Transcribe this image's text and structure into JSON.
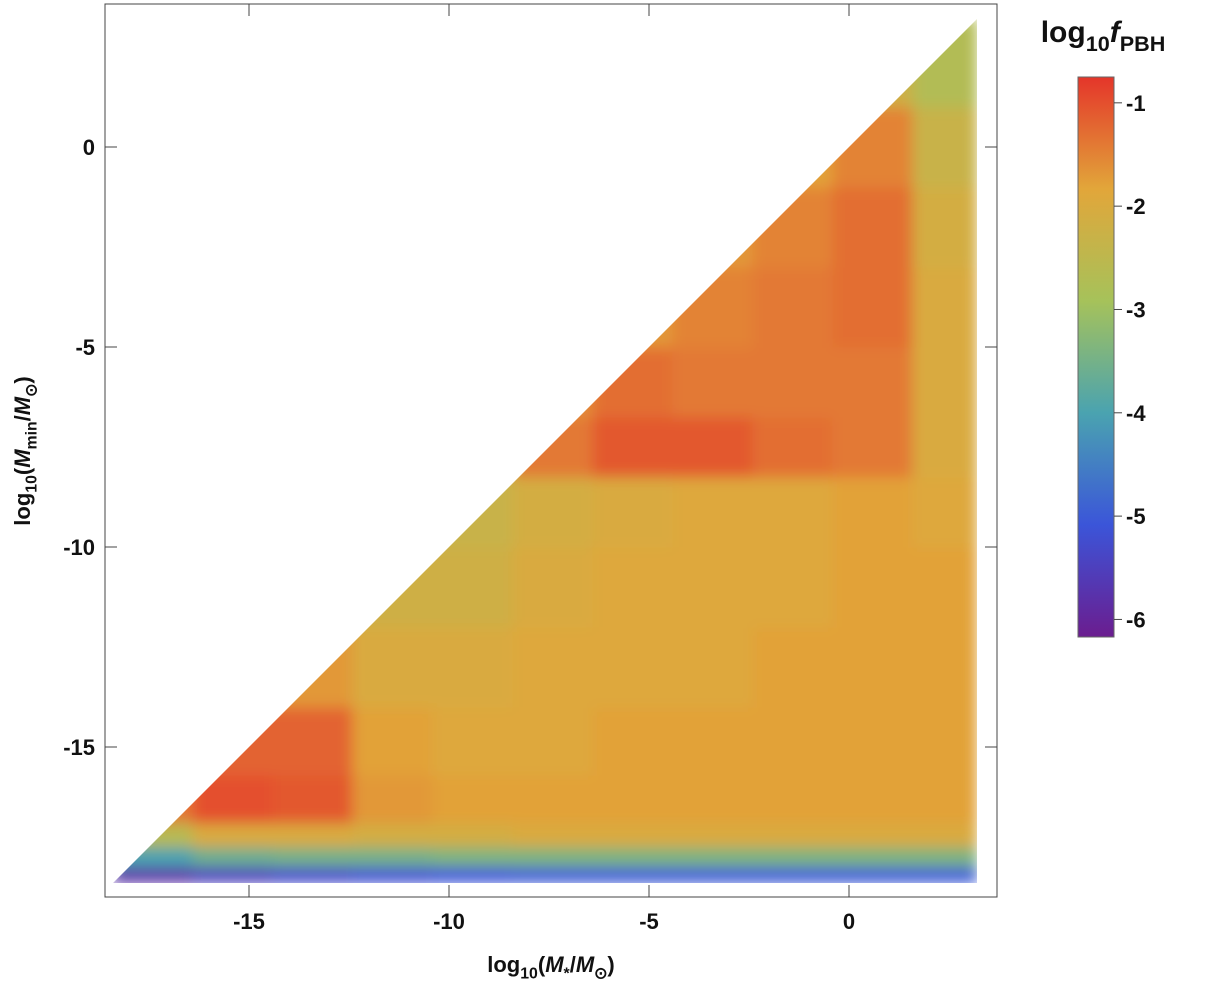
{
  "chart_data": {
    "type": "heatmap",
    "xlabel": [
      "log",
      "10",
      "(",
      "M",
      "*",
      "/",
      "M",
      "⊙",
      ")"
    ],
    "ylabel": [
      "log",
      "10",
      "(",
      "M",
      "min",
      "/",
      "M",
      "⊙",
      ")"
    ],
    "colorbar_label": [
      "log",
      "10",
      "f",
      "PBH"
    ],
    "xlim": [
      -18.6,
      3.7
    ],
    "ylim": [
      -18.75,
      3.575
    ],
    "xticks": [
      -15,
      -10,
      -5,
      0
    ],
    "yticks": [
      -15,
      -10,
      -5,
      0
    ],
    "x_edges": [
      -18.4,
      -16.4,
      -14.4,
      -12.4,
      -10.4,
      -8.4,
      -6.4,
      -4.4,
      -2.4,
      -0.4,
      1.6,
      3.2
    ],
    "y_edges": [
      -18.4,
      -18.0,
      -17.5,
      -16.9,
      -15.7,
      -14,
      -12,
      -10,
      -8.25,
      -6.75,
      -5,
      -3,
      -1,
      1,
      3.2
    ],
    "z": [
      [
        -5.8,
        -5.5,
        -5.3,
        -5.2,
        -5.1,
        -5.0,
        -5.0,
        -5.0,
        -5.0,
        -5.0,
        -5.0
      ],
      [
        -4.0,
        -3.6,
        -3.5,
        -3.5,
        -3.4,
        -3.4,
        -3.4,
        -3.4,
        -3.4,
        -3.4,
        -3.4
      ],
      [
        -2.6,
        -2.0,
        -2.0,
        -2.1,
        -2.1,
        -2.0,
        -2.0,
        -2.0,
        -2.0,
        -2.0,
        -2.0
      ],
      [
        -1.4,
        -1.0,
        -1.1,
        -1.7,
        -1.8,
        -1.8,
        -1.8,
        -1.8,
        -1.8,
        -1.8,
        -1.8
      ],
      [
        null,
        -1.2,
        -1.2,
        -1.8,
        -1.9,
        -1.9,
        -1.8,
        -1.8,
        -1.8,
        -1.8,
        -1.8
      ],
      [
        null,
        -1.9,
        -1.7,
        -2.0,
        -2.0,
        -1.9,
        -1.9,
        -1.9,
        -1.8,
        -1.8,
        -1.8
      ],
      [
        null,
        null,
        -2.3,
        -2.2,
        -2.2,
        -2.0,
        -1.9,
        -1.9,
        -1.9,
        -1.8,
        -1.8
      ],
      [
        null,
        null,
        null,
        -2.6,
        -2.3,
        -2.1,
        -2.0,
        -1.9,
        -1.9,
        -1.8,
        -1.9
      ],
      [
        null,
        null,
        null,
        null,
        -2.4,
        -1.4,
        -1.1,
        -1.1,
        -1.3,
        -1.4,
        -2.0
      ],
      [
        null,
        null,
        null,
        null,
        null,
        -1.6,
        -1.3,
        -1.4,
        -1.4,
        -1.4,
        -2.0
      ],
      [
        null,
        null,
        null,
        null,
        null,
        null,
        -1.7,
        -1.5,
        -1.4,
        -1.3,
        -2.0
      ],
      [
        null,
        null,
        null,
        null,
        null,
        null,
        null,
        -1.7,
        -1.5,
        -1.3,
        -2.1
      ],
      [
        null,
        null,
        null,
        null,
        null,
        null,
        null,
        null,
        -1.8,
        -1.5,
        -2.3
      ],
      [
        null,
        null,
        null,
        null,
        null,
        null,
        null,
        null,
        null,
        -2.2,
        -2.7
      ]
    ],
    "clim": [
      -6.17,
      -0.75
    ],
    "colorbar_ticks": [
      -1,
      -2,
      -3,
      -4,
      -5,
      -6
    ],
    "colorscale": [
      "#6b1d8f",
      "#3b55d9",
      "#4aa3b0",
      "#a6c25a",
      "#e2a63a",
      "#e4352a"
    ]
  }
}
